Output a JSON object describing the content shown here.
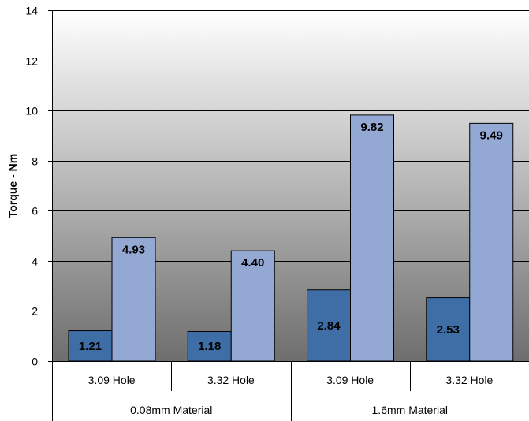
{
  "chart_data": {
    "type": "bar",
    "title": "",
    "xlabel": "",
    "ylabel": "Torque - Nm",
    "ylim": [
      0,
      14
    ],
    "yticks": [
      0,
      2,
      4,
      6,
      8,
      10,
      12,
      14
    ],
    "grid": true,
    "legend": "none",
    "groups": [
      "0.08mm Material",
      "1.6mm Material"
    ],
    "categories": [
      "3.09 Hole",
      "3.32 Hole",
      "3.09 Hole",
      "3.32 Hole"
    ],
    "series": [
      {
        "values": [
          1.21,
          1.18,
          2.84,
          2.53
        ],
        "color": "#3f6ea6"
      },
      {
        "values": [
          4.93,
          4.4,
          9.82,
          9.49
        ],
        "color": "#93a9d4"
      }
    ],
    "data_labels": [
      [
        "1.21",
        "1.18",
        "2.84",
        "2.53"
      ],
      [
        "4.93",
        "4.40",
        "9.82",
        "9.49"
      ]
    ],
    "plot_background": {
      "top": "#ffffff",
      "bottom": "#6e6e6e"
    }
  }
}
